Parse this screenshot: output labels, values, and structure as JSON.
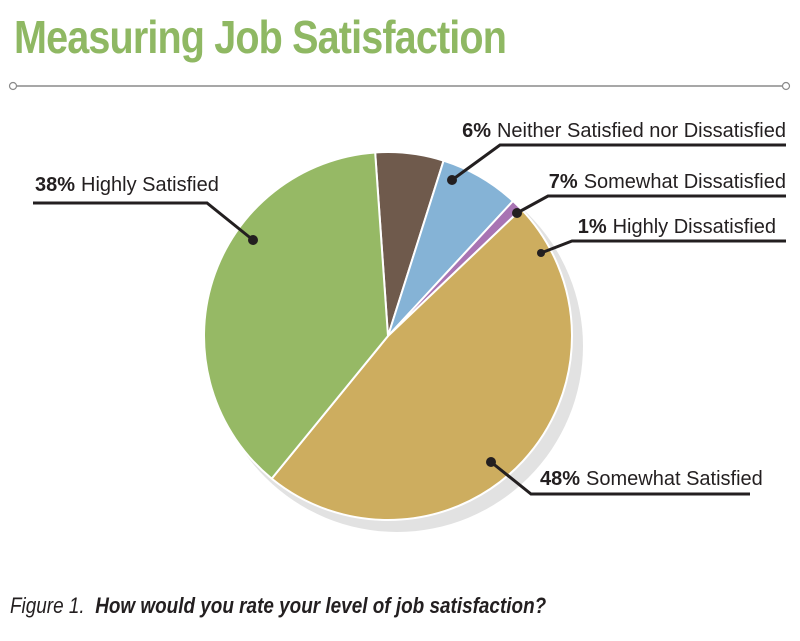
{
  "title": "Measuring Job Satisfaction",
  "caption": {
    "figure": "Figure 1.",
    "question": "How would you rate your level of job satisfaction?"
  },
  "colors": {
    "title": "#8fb863",
    "rule": "#8a8a8a",
    "leader": "#231f20"
  },
  "chart_data": {
    "type": "pie",
    "title": "Measuring Job Satisfaction",
    "start_angle_deg": -4,
    "direction": "clockwise",
    "slices": [
      {
        "label": "Neither Satisfied nor Dissatisfied",
        "pct": "6%",
        "value": 6,
        "color": "#6f5a4c"
      },
      {
        "label": "Somewhat Dissatisfied",
        "pct": "7%",
        "value": 7,
        "color": "#85b3d6"
      },
      {
        "label": "Highly Dissatisfied",
        "pct": "1%",
        "value": 1,
        "color": "#a874b3"
      },
      {
        "label": "Somewhat Satisfied",
        "pct": "48%",
        "value": 48,
        "color": "#cdad5f"
      },
      {
        "label": "Highly Satisfied",
        "pct": "38%",
        "value": 38,
        "color": "#96b965"
      }
    ]
  }
}
